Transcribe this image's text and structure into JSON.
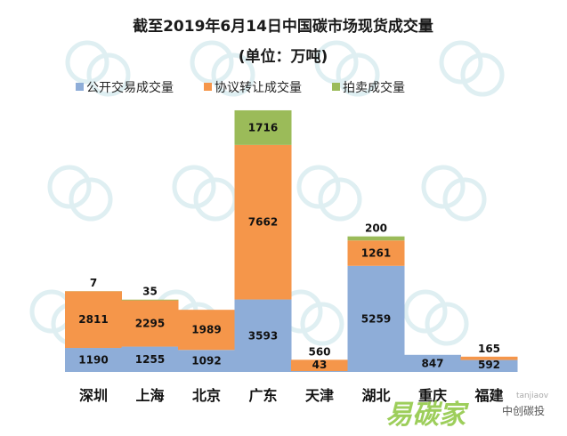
{
  "chart_data": {
    "type": "bar",
    "stacked": true,
    "title": "截至2019年6月14日中国碳市场现货成交量",
    "subtitle": "(单位：万吨)",
    "categories": [
      "深圳",
      "上海",
      "北京",
      "广东",
      "天津",
      "湖北",
      "重庆",
      "福建"
    ],
    "series": [
      {
        "name": "公开交易成交量",
        "color": "#8eadd8",
        "values": [
          1190,
          1255,
          1092,
          3593,
          43,
          5259,
          847,
          592
        ],
        "labels": [
          "1190",
          "1255",
          "1092",
          "3593",
          "43",
          "5259",
          "847",
          "592"
        ]
      },
      {
        "name": "协议转让成交量",
        "color": "#f5964a",
        "values": [
          2811,
          2295,
          1989,
          7662,
          560,
          1261,
          0,
          165
        ],
        "labels": [
          "2811",
          "2295",
          "1989",
          "7662",
          "560",
          "1261",
          "",
          "165"
        ]
      },
      {
        "name": "拍卖成交量",
        "color": "#9bbb59",
        "values": [
          7,
          35,
          0,
          1716,
          0,
          200,
          0,
          0
        ],
        "labels": [
          "7",
          "35",
          "",
          "1716",
          "",
          "200",
          "",
          ""
        ]
      }
    ],
    "ylim": [
      0,
      13500
    ],
    "grid": false,
    "legend": "top"
  },
  "watermark": {
    "logo": "易碳家",
    "name": "中创碳投",
    "url": "tanjiaov"
  }
}
